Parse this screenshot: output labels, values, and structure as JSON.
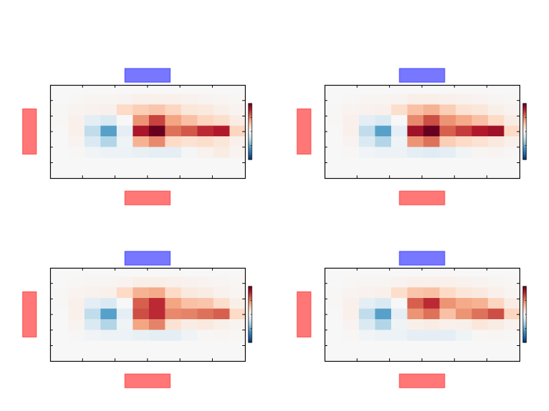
{
  "figure": {
    "background": "#ffffff"
  },
  "style": {
    "axis_color": "#000000",
    "blue_marker_fill": "#7777ff",
    "blue_marker_stroke": "#4444ff",
    "red_marker_fill": "#ff7777",
    "red_marker_stroke": "#ff4444",
    "colormap": "RdBu_r",
    "colormap_stops": [
      "#053061",
      "#2166ac",
      "#4393c3",
      "#92c5de",
      "#d1e5f0",
      "#f7f7f7",
      "#fddbc7",
      "#f4a582",
      "#d6604d",
      "#b2182b",
      "#67001f"
    ],
    "value_range": [
      -1.0,
      1.0
    ]
  },
  "chart_data": [
    {
      "type": "heatmap",
      "title": "",
      "xlabel": "",
      "ylabel": "",
      "colorbar": "right",
      "rows": 6,
      "cols": 12,
      "values": [
        [
          0.0,
          0.01,
          0.02,
          0.02,
          0.03,
          0.05,
          0.05,
          0.05,
          0.04,
          0.03,
          0.02,
          0.01
        ],
        [
          0.01,
          0.03,
          0.04,
          0.05,
          0.2,
          0.25,
          0.28,
          0.22,
          0.12,
          0.1,
          0.06,
          0.03
        ],
        [
          0.01,
          0.05,
          -0.1,
          -0.15,
          0.0,
          0.45,
          0.68,
          0.4,
          0.3,
          0.22,
          0.18,
          0.08
        ],
        [
          0.0,
          0.05,
          -0.25,
          -0.55,
          -0.1,
          0.82,
          1.0,
          0.55,
          0.62,
          0.75,
          0.8,
          0.22
        ],
        [
          0.0,
          0.03,
          -0.15,
          -0.3,
          -0.05,
          0.35,
          0.48,
          0.2,
          0.15,
          0.18,
          0.12,
          0.05
        ],
        [
          0.0,
          0.01,
          -0.03,
          -0.06,
          -0.06,
          -0.08,
          -0.1,
          -0.1,
          -0.02,
          0.04,
          0.08,
          0.03
        ]
      ]
    },
    {
      "type": "heatmap",
      "title": "",
      "xlabel": "",
      "ylabel": "",
      "colorbar": "right",
      "rows": 6,
      "cols": 12,
      "values": [
        [
          0.0,
          0.01,
          0.02,
          0.02,
          0.03,
          0.06,
          0.06,
          0.05,
          0.04,
          0.03,
          0.02,
          0.01
        ],
        [
          0.01,
          0.03,
          0.04,
          0.05,
          0.18,
          0.3,
          0.35,
          0.25,
          0.15,
          0.12,
          0.06,
          0.03
        ],
        [
          0.01,
          0.05,
          -0.1,
          -0.15,
          0.0,
          0.48,
          0.65,
          0.45,
          0.38,
          0.3,
          0.2,
          0.08
        ],
        [
          0.0,
          0.05,
          -0.25,
          -0.55,
          -0.1,
          0.85,
          1.0,
          0.6,
          0.7,
          0.8,
          0.85,
          0.2
        ],
        [
          0.0,
          0.03,
          -0.15,
          -0.3,
          -0.05,
          0.45,
          0.55,
          0.25,
          0.2,
          0.15,
          0.1,
          0.05
        ],
        [
          0.0,
          0.01,
          -0.03,
          -0.06,
          -0.06,
          -0.1,
          -0.12,
          -0.1,
          -0.03,
          0.02,
          0.03,
          0.01
        ]
      ]
    },
    {
      "type": "heatmap",
      "title": "",
      "xlabel": "",
      "ylabel": "",
      "colorbar": "right",
      "rows": 6,
      "cols": 12,
      "values": [
        [
          0.0,
          0.01,
          0.02,
          0.02,
          0.03,
          0.06,
          0.06,
          0.05,
          0.04,
          0.03,
          0.02,
          0.01
        ],
        [
          0.01,
          0.03,
          0.04,
          0.05,
          0.2,
          0.35,
          0.38,
          0.2,
          0.1,
          0.08,
          0.04,
          0.02
        ],
        [
          0.01,
          0.05,
          -0.1,
          -0.15,
          0.0,
          0.6,
          0.75,
          0.4,
          0.3,
          0.28,
          0.18,
          0.06
        ],
        [
          0.0,
          0.05,
          -0.25,
          -0.55,
          -0.1,
          0.65,
          0.75,
          0.48,
          0.5,
          0.55,
          0.6,
          0.2
        ],
        [
          0.0,
          0.03,
          -0.15,
          -0.3,
          -0.05,
          0.4,
          0.5,
          0.15,
          0.08,
          0.1,
          0.06,
          0.03
        ],
        [
          0.0,
          0.01,
          -0.03,
          -0.06,
          -0.06,
          -0.08,
          -0.1,
          -0.1,
          -0.04,
          0.01,
          0.02,
          0.01
        ]
      ]
    },
    {
      "type": "heatmap",
      "title": "",
      "xlabel": "",
      "ylabel": "",
      "colorbar": "right",
      "rows": 6,
      "cols": 12,
      "values": [
        [
          0.0,
          0.01,
          0.02,
          0.02,
          0.03,
          0.05,
          0.05,
          0.05,
          0.04,
          0.03,
          0.02,
          0.01
        ],
        [
          0.01,
          0.03,
          0.04,
          0.05,
          0.18,
          0.28,
          0.3,
          0.2,
          0.12,
          0.1,
          0.05,
          0.02
        ],
        [
          0.01,
          0.05,
          -0.1,
          -0.15,
          0.0,
          0.6,
          0.75,
          0.45,
          0.38,
          0.35,
          0.22,
          0.08
        ],
        [
          0.0,
          0.05,
          -0.25,
          -0.55,
          -0.1,
          0.45,
          0.55,
          0.3,
          0.45,
          0.55,
          0.65,
          0.22
        ],
        [
          0.0,
          0.03,
          -0.15,
          -0.3,
          -0.05,
          0.06,
          0.08,
          0.05,
          0.06,
          0.12,
          0.08,
          0.04
        ],
        [
          0.0,
          0.01,
          -0.03,
          -0.06,
          -0.06,
          -0.1,
          -0.1,
          -0.1,
          -0.05,
          0.01,
          0.02,
          0.01
        ]
      ]
    }
  ]
}
